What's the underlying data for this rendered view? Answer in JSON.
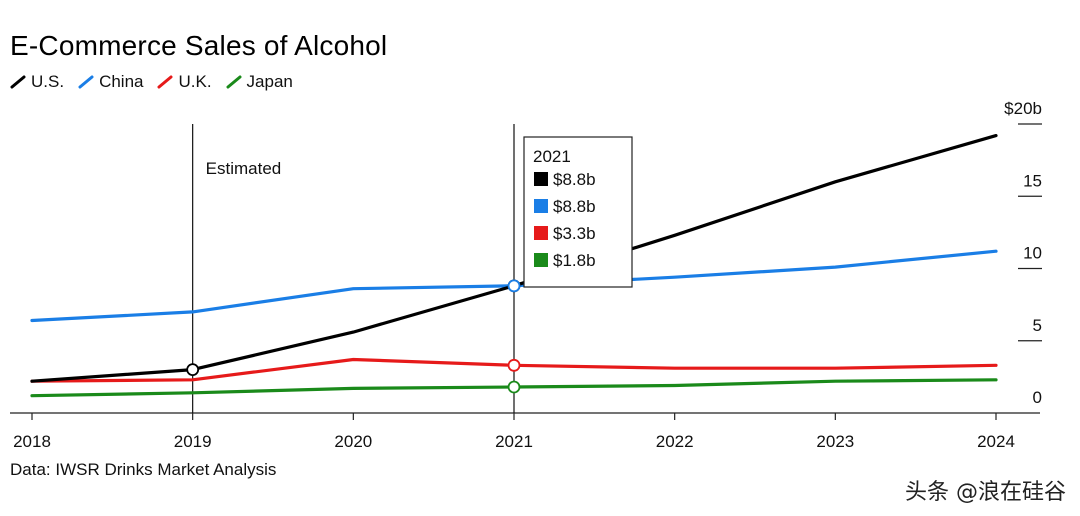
{
  "chart_data": {
    "type": "line",
    "title": "E-Commerce Sales of Alcohol",
    "x": [
      2018,
      2019,
      2020,
      2021,
      2022,
      2023,
      2024
    ],
    "x_tick_labels": [
      "2018",
      "2019",
      "2020",
      "2021",
      "2022",
      "2023",
      "2024"
    ],
    "ylim": [
      0,
      20
    ],
    "y_ticks": [
      0,
      5,
      10,
      15,
      20
    ],
    "y_tick_labels": [
      "0",
      "5",
      "10",
      "15",
      "$20b"
    ],
    "series": [
      {
        "name": "U.S.",
        "color": "#000000",
        "values": [
          2.2,
          3.0,
          5.6,
          8.8,
          12.3,
          16.0,
          19.2
        ]
      },
      {
        "name": "China",
        "color": "#1a7ee6",
        "values": [
          6.4,
          7.0,
          8.6,
          8.8,
          9.4,
          10.1,
          11.2
        ]
      },
      {
        "name": "U.K.",
        "color": "#e61a1a",
        "values": [
          2.2,
          2.3,
          3.7,
          3.3,
          3.1,
          3.1,
          3.3
        ]
      },
      {
        "name": "Japan",
        "color": "#1a8a1a",
        "values": [
          1.2,
          1.4,
          1.7,
          1.8,
          1.9,
          2.2,
          2.3
        ]
      }
    ],
    "annotations": [
      {
        "x": 2019,
        "label": "Estimated"
      },
      {
        "x": 2021,
        "label": ""
      }
    ],
    "tooltip": {
      "year": "2021",
      "rows": [
        {
          "value": "$8.8b",
          "color": "#000000"
        },
        {
          "value": "$8.8b",
          "color": "#1a7ee6"
        },
        {
          "value": "$3.3b",
          "color": "#e61a1a"
        },
        {
          "value": "$1.8b",
          "color": "#1a8a1a"
        }
      ]
    },
    "marker_points": [
      {
        "series": "U.S.",
        "x": 2019
      },
      {
        "series": "U.S.",
        "x": 2021
      },
      {
        "series": "China",
        "x": 2021
      },
      {
        "series": "U.K.",
        "x": 2021
      },
      {
        "series": "Japan",
        "x": 2021
      }
    ]
  },
  "source": "Data: IWSR Drinks Market Analysis",
  "watermark": "头条 @浪在硅谷"
}
